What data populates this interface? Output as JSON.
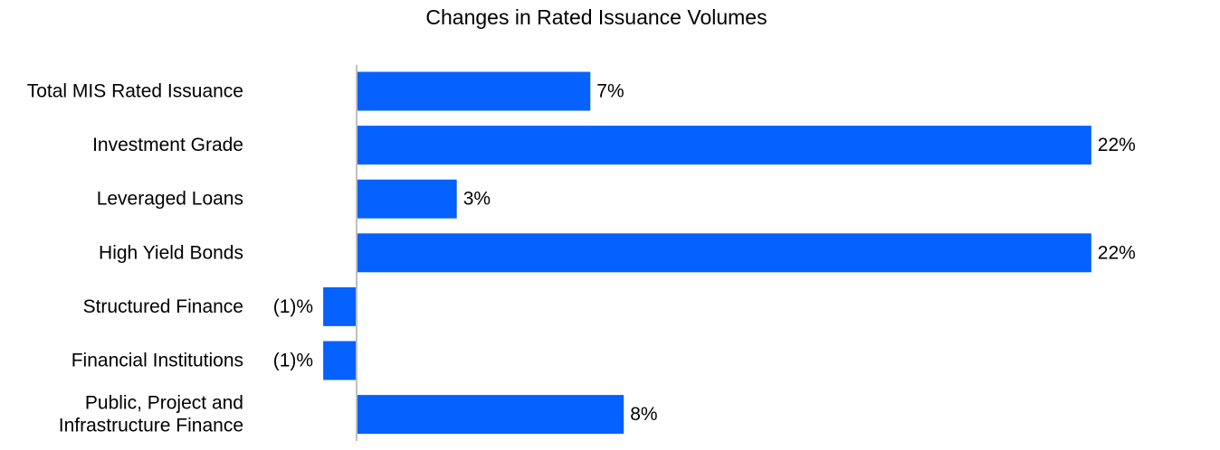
{
  "chart_data": {
    "type": "bar",
    "orientation": "horizontal",
    "title": "Changes in Rated Issuance Volumes",
    "categories": [
      [
        "Total MIS Rated Issuance"
      ],
      [
        "Investment Grade"
      ],
      [
        "Leveraged Loans"
      ],
      [
        "High Yield Bonds"
      ],
      [
        "Structured Finance"
      ],
      [
        "Financial Institutions"
      ],
      [
        "Public, Project and",
        "Infrastructure Finance"
      ]
    ],
    "values": [
      7,
      22,
      3,
      22,
      -1,
      -1,
      8
    ],
    "value_labels": [
      "7%",
      "22%",
      "3%",
      "22%",
      "(1)%",
      "(1)%",
      "8%"
    ],
    "unit": "%",
    "bar_color": "#0561FF",
    "axis_color": "#BFBFBF",
    "grid": false,
    "legend": "none"
  }
}
